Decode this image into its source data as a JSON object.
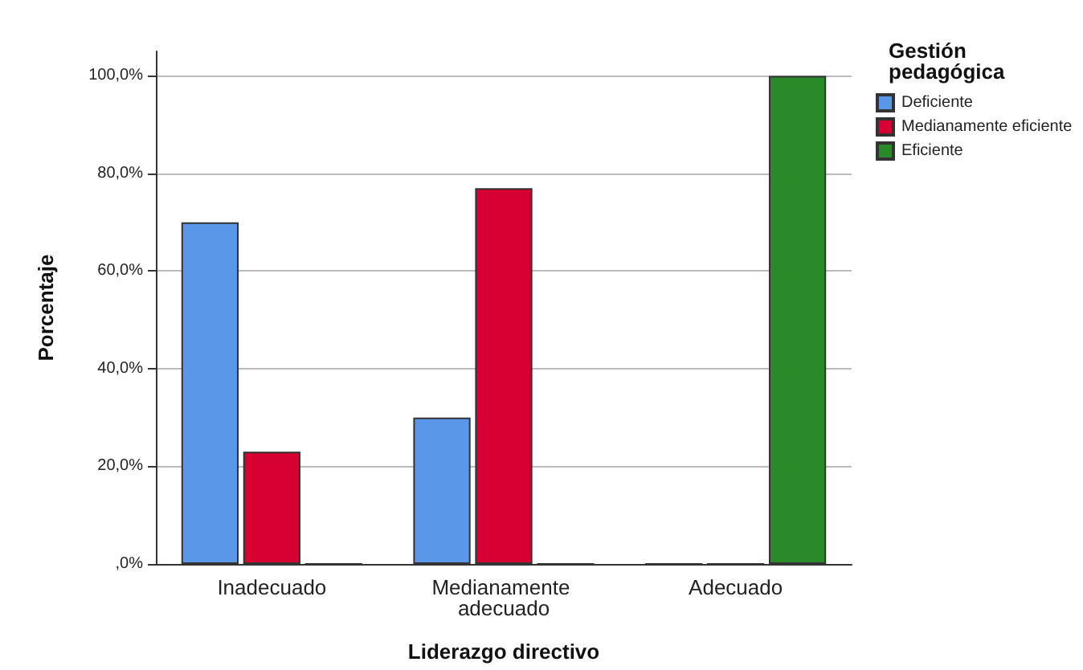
{
  "chart_data": {
    "type": "bar",
    "xlabel": "Liderazgo directivo",
    "ylabel": "Porcentaje",
    "legend_title": "Gestión pedagógica",
    "categories": [
      "Inadecuado",
      "Medianamente adecuado",
      "Adecuado"
    ],
    "series": [
      {
        "name": "Deficiente",
        "color": "#5a97e8",
        "values": [
          70,
          30,
          0
        ]
      },
      {
        "name": "Medianamente eficiente",
        "color": "#d70033",
        "values": [
          23,
          77,
          0
        ]
      },
      {
        "name": "Eficiente",
        "color": "#2a8a2a",
        "values": [
          0,
          0,
          100
        ]
      }
    ],
    "ylim": [
      0,
      105
    ],
    "yticks": [
      {
        "value": 0,
        "label": ",0%"
      },
      {
        "value": 20,
        "label": "20,0%"
      },
      {
        "value": 40,
        "label": "40,0%"
      },
      {
        "value": 60,
        "label": "60,0%"
      },
      {
        "value": 80,
        "label": "80,0%"
      },
      {
        "value": 100,
        "label": "100,0%"
      }
    ],
    "grid": "y",
    "legend": "top right"
  }
}
